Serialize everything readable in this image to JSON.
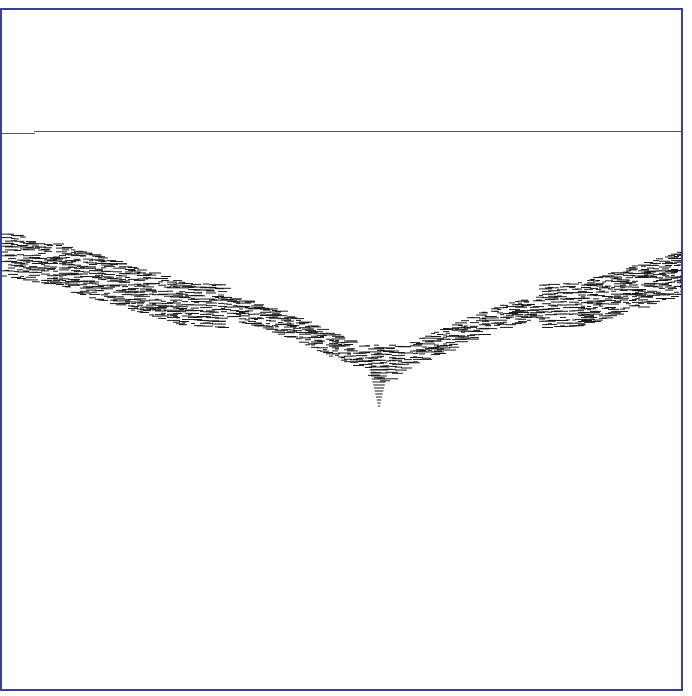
{
  "canvas": {
    "border_color": "#3a3f9e",
    "background_color": "#ffffff",
    "line_color": "#555555",
    "stroke_color": "#1a1a1a"
  },
  "figure": {
    "kind": "fractal-line-pattern",
    "shape": "scalloped-v-curve",
    "center_dip": "single-v"
  }
}
